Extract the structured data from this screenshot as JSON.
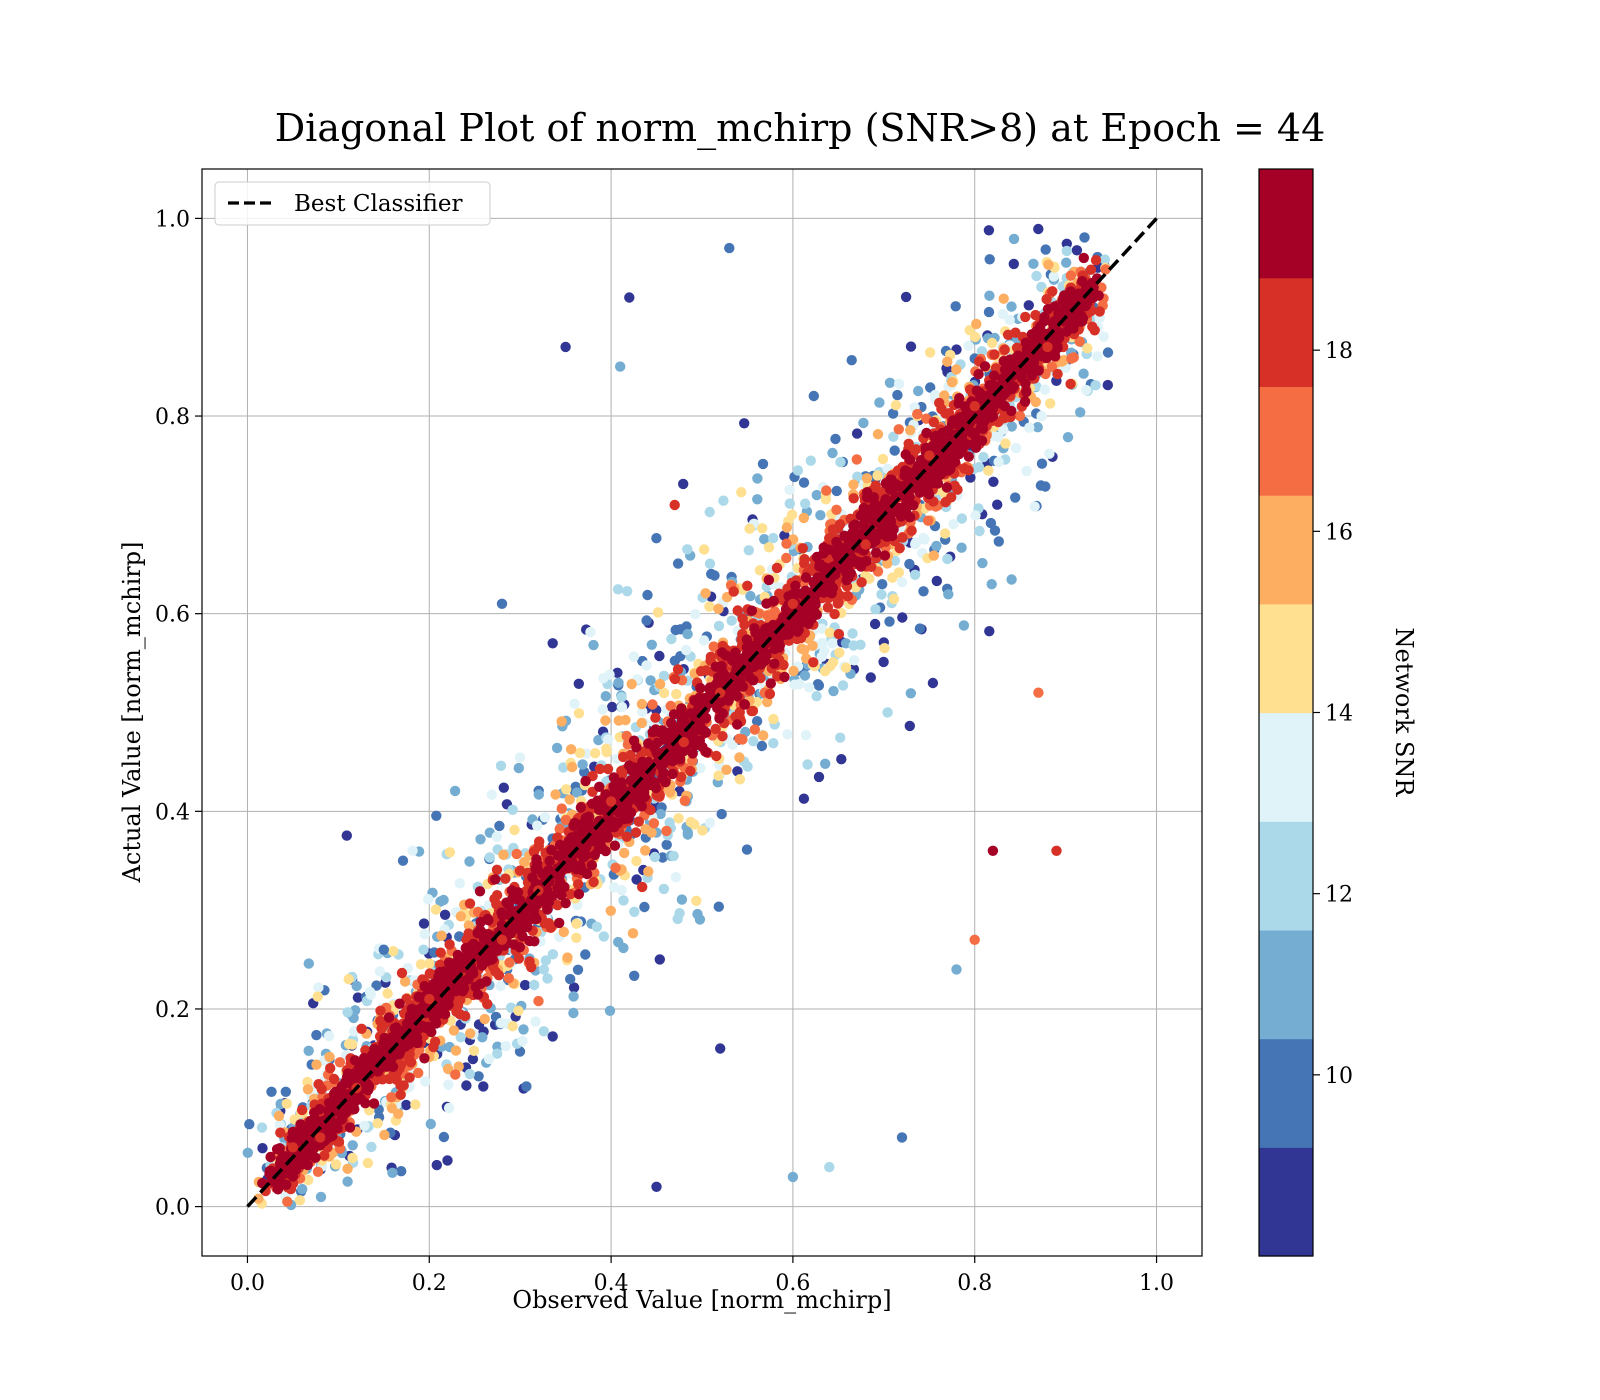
{
  "chart_data": {
    "type": "scatter",
    "title": "Diagonal Plot of norm_mchirp (SNR>8) at Epoch = 44",
    "xlabel": "Observed Value [norm_mchirp]",
    "ylabel": "Actual Value [norm_mchirp]",
    "xlim": [
      -0.05,
      1.05
    ],
    "ylim": [
      -0.05,
      1.05
    ],
    "xticks": [
      "0.0",
      "0.2",
      "0.4",
      "0.6",
      "0.8",
      "1.0"
    ],
    "yticks": [
      "0.0",
      "0.2",
      "0.4",
      "0.6",
      "0.8",
      "1.0"
    ],
    "grid": true,
    "legend": {
      "position": "top-left",
      "entries": [
        "Best Classifier"
      ]
    },
    "reference_line": {
      "name": "Best Classifier",
      "x": [
        0.0,
        1.0
      ],
      "y": [
        0.0,
        1.0
      ],
      "style": "dashed",
      "color": "#000000"
    },
    "colorbar": {
      "label": "Network SNR",
      "range": [
        8,
        20
      ],
      "ticks": [
        "10",
        "12",
        "14",
        "16",
        "18"
      ],
      "colors": [
        "#313695",
        "#4575b4",
        "#74add1",
        "#abd9e9",
        "#e0f3f8",
        "#fee090",
        "#fdae61",
        "#f46d43",
        "#d73027",
        "#a50026"
      ]
    },
    "series": [
      {
        "description": "dense high-SNR core along the diagonal",
        "snr_band": [
          18,
          20
        ],
        "points": [
          [
            0.05,
            0.06
          ],
          [
            0.08,
            0.07
          ],
          [
            0.1,
            0.11
          ],
          [
            0.12,
            0.12
          ],
          [
            0.15,
            0.16
          ],
          [
            0.18,
            0.17
          ],
          [
            0.2,
            0.21
          ],
          [
            0.22,
            0.22
          ],
          [
            0.25,
            0.26
          ],
          [
            0.28,
            0.27
          ],
          [
            0.3,
            0.31
          ],
          [
            0.32,
            0.32
          ],
          [
            0.35,
            0.36
          ],
          [
            0.38,
            0.37
          ],
          [
            0.4,
            0.41
          ],
          [
            0.42,
            0.42
          ],
          [
            0.45,
            0.46
          ],
          [
            0.48,
            0.47
          ],
          [
            0.5,
            0.51
          ],
          [
            0.52,
            0.52
          ],
          [
            0.55,
            0.56
          ],
          [
            0.58,
            0.57
          ],
          [
            0.6,
            0.61
          ],
          [
            0.62,
            0.62
          ],
          [
            0.65,
            0.66
          ],
          [
            0.68,
            0.67
          ],
          [
            0.7,
            0.71
          ],
          [
            0.72,
            0.72
          ],
          [
            0.75,
            0.76
          ],
          [
            0.78,
            0.77
          ],
          [
            0.8,
            0.81
          ],
          [
            0.82,
            0.82
          ],
          [
            0.85,
            0.86
          ],
          [
            0.88,
            0.87
          ],
          [
            0.9,
            0.91
          ],
          [
            0.92,
            0.96
          ]
        ]
      },
      {
        "description": "scattered low-SNR outliers",
        "snr_band": [
          8,
          12
        ],
        "points": [
          [
            0.42,
            0.92
          ],
          [
            0.53,
            0.97
          ],
          [
            0.41,
            0.85
          ],
          [
            0.35,
            0.87
          ],
          [
            0.28,
            0.61
          ],
          [
            0.6,
            0.03
          ],
          [
            0.45,
            0.02
          ],
          [
            0.72,
            0.07
          ],
          [
            0.64,
            0.04
          ],
          [
            0.15,
            0.26
          ],
          [
            0.78,
            0.24
          ],
          [
            0.52,
            0.16
          ]
        ]
      },
      {
        "description": "isolated high-SNR outliers",
        "snr_band": [
          17,
          20
        ],
        "points": [
          [
            0.87,
            0.52
          ],
          [
            0.89,
            0.36
          ],
          [
            0.82,
            0.36
          ],
          [
            0.8,
            0.27
          ],
          [
            0.47,
            0.71
          ]
        ]
      }
    ]
  }
}
